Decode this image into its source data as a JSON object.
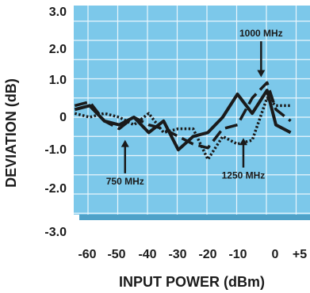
{
  "chart_data": {
    "type": "line",
    "title": "",
    "xlabel": "INPUT POWER (dBm)",
    "ylabel": "DEVIATION (dB)",
    "xlim": [
      -65,
      8
    ],
    "ylim": [
      -2.75,
      3.0
    ],
    "grid": true,
    "x_ticks": [
      -60,
      -50,
      -40,
      -30,
      -20,
      -10,
      0,
      5
    ],
    "x_tick_labels": [
      "-60",
      "-50",
      "-40",
      "-30",
      "-20",
      "-10",
      "0",
      "+5"
    ],
    "y_ticks": [
      3.0,
      2.0,
      1.0,
      0,
      -1.0,
      -2.0,
      -3.0
    ],
    "y_tick_labels": [
      "3.0",
      "2.0",
      "1.0",
      "0",
      "-1.0",
      "-2.0",
      "-3.0"
    ],
    "series": [
      {
        "name": "750 MHz",
        "style": "solid",
        "x": [
          -65,
          -60,
          -55,
          -50,
          -45,
          -40,
          -35,
          -30,
          -25,
          -20,
          -15,
          -10,
          -5,
          0,
          3,
          8
        ],
        "y": [
          0.2,
          0.3,
          -0.1,
          -0.2,
          0.0,
          -0.4,
          -0.1,
          -0.85,
          -0.5,
          -0.4,
          0.0,
          0.6,
          0.1,
          0.7,
          -0.2,
          -0.4
        ]
      },
      {
        "name": "1000 MHz",
        "style": "dashed",
        "x": [
          -65,
          -60,
          -55,
          -50,
          -45,
          -40,
          -35,
          -30,
          -25,
          -20,
          -15,
          -10,
          -5,
          0,
          3,
          8
        ],
        "y": [
          0.3,
          0.4,
          -0.1,
          -0.3,
          0.0,
          -0.2,
          -0.3,
          -0.5,
          -0.7,
          -0.8,
          -0.3,
          -0.2,
          0.5,
          0.9,
          0.2,
          -0.1
        ]
      },
      {
        "name": "1250 MHz",
        "style": "dotted",
        "x": [
          -65,
          -60,
          -55,
          -50,
          -45,
          -40,
          -35,
          -30,
          -25,
          -20,
          -15,
          -10,
          -5,
          0,
          3,
          8
        ],
        "y": [
          0.1,
          0.0,
          0.1,
          0.0,
          -0.2,
          0.1,
          -0.4,
          -0.3,
          -0.3,
          -1.1,
          -0.5,
          -0.7,
          -0.6,
          0.5,
          0.3,
          0.3
        ]
      }
    ],
    "annotations": [
      {
        "text": "1000 MHz",
        "x": -2,
        "y": 2.1,
        "arrow_to": [
          -2,
          1.0
        ]
      },
      {
        "text": "750 MHz",
        "x": -48,
        "y": -1.75,
        "arrow_to": [
          -48,
          -0.55
        ]
      },
      {
        "text": "1250 MHz",
        "x": -8,
        "y": -1.6,
        "arrow_to": [
          -8,
          -0.5
        ]
      }
    ],
    "colors": {
      "plot_background": "#7cc8ea",
      "grid": "#eaf6fc",
      "shadow": "#4fa1c8",
      "line": "#1a1a1a"
    }
  }
}
